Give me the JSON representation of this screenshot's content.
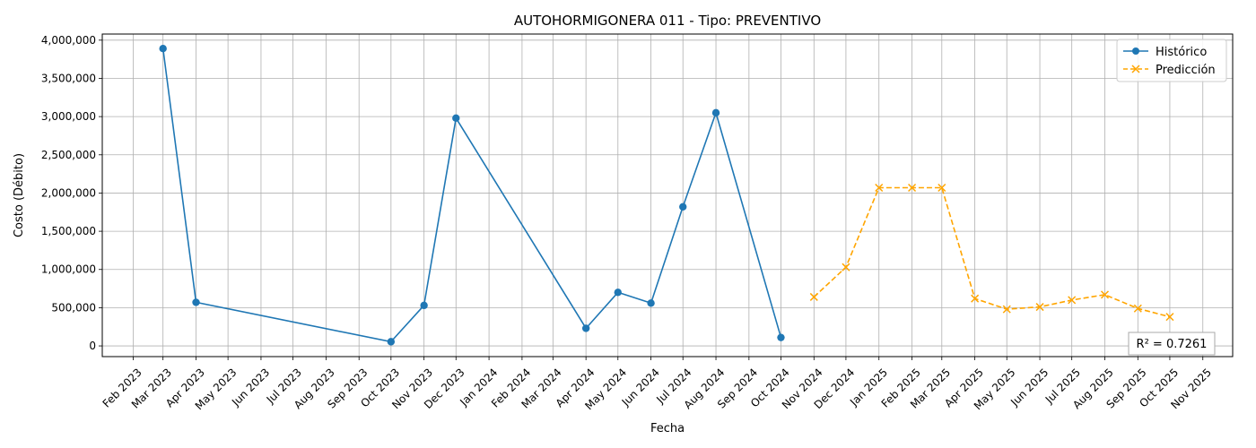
{
  "chart_data": {
    "type": "line",
    "title": "AUTOHORMIGONERA 011 - Tipo: PREVENTIVO",
    "xlabel": "Fecha",
    "ylabel": "Costo (Débito)",
    "xlim": [
      "2023-01-03",
      "2025-11-29"
    ],
    "ylim": [
      -140000,
      4080000
    ],
    "x_ticks": [
      {
        "date": "2023-02-01",
        "label": "Feb 2023"
      },
      {
        "date": "2023-03-01",
        "label": "Mar 2023"
      },
      {
        "date": "2023-04-01",
        "label": "Apr 2023"
      },
      {
        "date": "2023-05-01",
        "label": "May 2023"
      },
      {
        "date": "2023-06-01",
        "label": "Jun 2023"
      },
      {
        "date": "2023-07-01",
        "label": "Jul 2023"
      },
      {
        "date": "2023-08-01",
        "label": "Aug 2023"
      },
      {
        "date": "2023-09-01",
        "label": "Sep 2023"
      },
      {
        "date": "2023-10-01",
        "label": "Oct 2023"
      },
      {
        "date": "2023-11-01",
        "label": "Nov 2023"
      },
      {
        "date": "2023-12-01",
        "label": "Dec 2023"
      },
      {
        "date": "2024-01-01",
        "label": "Jan 2024"
      },
      {
        "date": "2024-02-01",
        "label": "Feb 2024"
      },
      {
        "date": "2024-03-01",
        "label": "Mar 2024"
      },
      {
        "date": "2024-04-01",
        "label": "Apr 2024"
      },
      {
        "date": "2024-05-01",
        "label": "May 2024"
      },
      {
        "date": "2024-06-01",
        "label": "Jun 2024"
      },
      {
        "date": "2024-07-01",
        "label": "Jul 2024"
      },
      {
        "date": "2024-08-01",
        "label": "Aug 2024"
      },
      {
        "date": "2024-09-01",
        "label": "Sep 2024"
      },
      {
        "date": "2024-10-01",
        "label": "Oct 2024"
      },
      {
        "date": "2024-11-01",
        "label": "Nov 2024"
      },
      {
        "date": "2024-12-01",
        "label": "Dec 2024"
      },
      {
        "date": "2025-01-01",
        "label": "Jan 2025"
      },
      {
        "date": "2025-02-01",
        "label": "Feb 2025"
      },
      {
        "date": "2025-03-01",
        "label": "Mar 2025"
      },
      {
        "date": "2025-04-01",
        "label": "Apr 2025"
      },
      {
        "date": "2025-05-01",
        "label": "May 2025"
      },
      {
        "date": "2025-06-01",
        "label": "Jun 2025"
      },
      {
        "date": "2025-07-01",
        "label": "Jul 2025"
      },
      {
        "date": "2025-08-01",
        "label": "Aug 2025"
      },
      {
        "date": "2025-09-01",
        "label": "Sep 2025"
      },
      {
        "date": "2025-10-01",
        "label": "Oct 2025"
      },
      {
        "date": "2025-11-01",
        "label": "Nov 2025"
      }
    ],
    "y_ticks": [
      {
        "value": 0,
        "label": "0"
      },
      {
        "value": 500000,
        "label": "500,000"
      },
      {
        "value": 1000000,
        "label": "1,000,000"
      },
      {
        "value": 1500000,
        "label": "1,500,000"
      },
      {
        "value": 2000000,
        "label": "2,000,000"
      },
      {
        "value": 2500000,
        "label": "2,500,000"
      },
      {
        "value": 3000000,
        "label": "3,000,000"
      },
      {
        "value": 3500000,
        "label": "3,500,000"
      },
      {
        "value": 4000000,
        "label": "4,000,000"
      }
    ],
    "grid": true,
    "legend_position": "top-right",
    "series": [
      {
        "name": "Histórico",
        "color": "#1f77b4",
        "line_style": "solid",
        "marker": "circle",
        "points": [
          {
            "x": "2023-03-01",
            "y": 3890000
          },
          {
            "x": "2023-04-01",
            "y": 570000
          },
          {
            "x": "2023-10-01",
            "y": 55000
          },
          {
            "x": "2023-11-01",
            "y": 530000
          },
          {
            "x": "2023-12-01",
            "y": 2980000
          },
          {
            "x": "2024-04-01",
            "y": 230000
          },
          {
            "x": "2024-05-01",
            "y": 700000
          },
          {
            "x": "2024-06-01",
            "y": 560000
          },
          {
            "x": "2024-07-01",
            "y": 1820000
          },
          {
            "x": "2024-08-01",
            "y": 3050000
          },
          {
            "x": "2024-10-01",
            "y": 110000
          }
        ]
      },
      {
        "name": "Predicción",
        "color": "#ffa500",
        "line_style": "dashed",
        "marker": "x",
        "points": [
          {
            "x": "2024-11-01",
            "y": 640000
          },
          {
            "x": "2024-12-01",
            "y": 1030000
          },
          {
            "x": "2025-01-01",
            "y": 2070000
          },
          {
            "x": "2025-02-01",
            "y": 2070000
          },
          {
            "x": "2025-03-01",
            "y": 2070000
          },
          {
            "x": "2025-04-01",
            "y": 620000
          },
          {
            "x": "2025-05-01",
            "y": 480000
          },
          {
            "x": "2025-06-01",
            "y": 510000
          },
          {
            "x": "2025-07-01",
            "y": 600000
          },
          {
            "x": "2025-08-01",
            "y": 670000
          },
          {
            "x": "2025-09-01",
            "y": 490000
          },
          {
            "x": "2025-10-01",
            "y": 380000
          }
        ]
      }
    ],
    "annotation": "R² = 0.7261"
  }
}
